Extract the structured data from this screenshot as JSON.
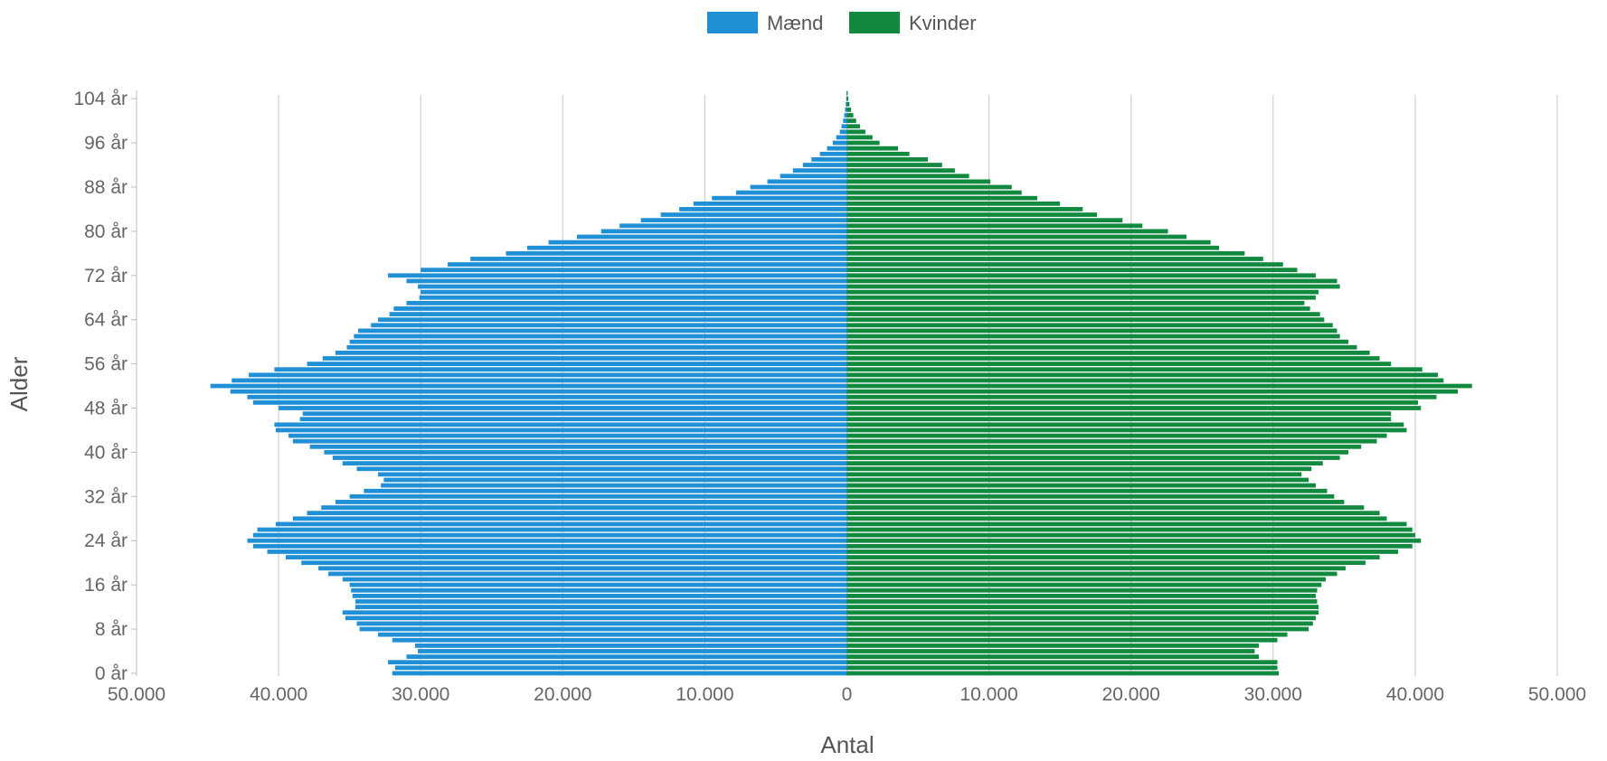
{
  "chart_data": {
    "type": "bar",
    "orientation": "horizontal",
    "layout": "population-pyramid",
    "xlabel": "Antal",
    "ylabel": "Alder",
    "xlim": [
      -50000,
      50000
    ],
    "x_ticks": [
      -50000,
      -40000,
      -30000,
      -20000,
      -10000,
      0,
      10000,
      20000,
      30000,
      40000,
      50000
    ],
    "x_tick_labels": [
      "50.000",
      "40.000",
      "30.000",
      "20.000",
      "10.000",
      "0",
      "10.000",
      "20.000",
      "30.000",
      "40.000",
      "50.000"
    ],
    "y_tick_labels": [
      "0 år",
      "8 år",
      "16 år",
      "24 år",
      "32 år",
      "40 år",
      "48 år",
      "56 år",
      "64 år",
      "72 år",
      "80 år",
      "88 år",
      "96 år",
      "104 år"
    ],
    "y_tick_ages": [
      0,
      8,
      16,
      24,
      32,
      40,
      48,
      56,
      64,
      72,
      80,
      88,
      96,
      104
    ],
    "grid": true,
    "legend_position": "top-center",
    "categories": [
      0,
      1,
      2,
      3,
      4,
      5,
      6,
      7,
      8,
      9,
      10,
      11,
      12,
      13,
      14,
      15,
      16,
      17,
      18,
      19,
      20,
      21,
      22,
      23,
      24,
      25,
      26,
      27,
      28,
      29,
      30,
      31,
      32,
      33,
      34,
      35,
      36,
      37,
      38,
      39,
      40,
      41,
      42,
      43,
      44,
      45,
      46,
      47,
      48,
      49,
      50,
      51,
      52,
      53,
      54,
      55,
      56,
      57,
      58,
      59,
      60,
      61,
      62,
      63,
      64,
      65,
      66,
      67,
      68,
      69,
      70,
      71,
      72,
      73,
      74,
      75,
      76,
      77,
      78,
      79,
      80,
      81,
      82,
      83,
      84,
      85,
      86,
      87,
      88,
      89,
      90,
      91,
      92,
      93,
      94,
      95,
      96,
      97,
      98,
      99,
      100,
      101,
      102,
      103,
      104,
      105
    ],
    "series": [
      {
        "name": "Mænd",
        "color": "#1f8fd6",
        "values": [
          32000,
          31800,
          32300,
          31000,
          30200,
          30400,
          32000,
          33000,
          34300,
          34500,
          35300,
          35500,
          34600,
          34600,
          34800,
          34900,
          35000,
          35500,
          36500,
          37200,
          38400,
          39500,
          40800,
          41800,
          42200,
          41800,
          41500,
          40200,
          39000,
          38000,
          37000,
          36000,
          35000,
          34000,
          32800,
          32600,
          33000,
          34500,
          35500,
          36200,
          36800,
          37800,
          39000,
          39300,
          40200,
          40300,
          38500,
          38300,
          40000,
          41800,
          42200,
          43400,
          44800,
          43300,
          42100,
          40300,
          38000,
          36900,
          36000,
          35200,
          35000,
          34700,
          34400,
          33500,
          33000,
          32200,
          31900,
          31000,
          30100,
          30000,
          30200,
          31000,
          32300,
          30000,
          28100,
          26500,
          24000,
          22500,
          21000,
          19000,
          17300,
          16000,
          14500,
          13100,
          11800,
          10800,
          9500,
          7800,
          6800,
          5600,
          4700,
          3800,
          3100,
          2500,
          1900,
          1400,
          1000,
          750,
          500,
          380,
          270,
          190,
          130,
          80,
          50,
          30
        ]
      },
      {
        "name": "Kvinder",
        "color": "#118a3f",
        "values": [
          30400,
          30300,
          30300,
          29000,
          28700,
          29000,
          30300,
          31000,
          32500,
          32800,
          33000,
          33200,
          33200,
          33100,
          33000,
          33100,
          33400,
          33700,
          34500,
          35100,
          36500,
          37500,
          38800,
          39800,
          40400,
          40000,
          39800,
          39400,
          38000,
          37500,
          36400,
          35000,
          34300,
          33800,
          33000,
          32500,
          32000,
          32700,
          33500,
          34700,
          35300,
          36200,
          37300,
          38000,
          39400,
          39200,
          38300,
          38300,
          40400,
          40200,
          41500,
          43000,
          44000,
          42000,
          41600,
          40500,
          38300,
          37500,
          36800,
          35900,
          35300,
          34700,
          34500,
          34200,
          33600,
          33300,
          32600,
          32200,
          33000,
          33200,
          34700,
          34500,
          33000,
          31700,
          30700,
          29300,
          28000,
          26200,
          25600,
          23900,
          22600,
          20800,
          19400,
          17600,
          16600,
          15000,
          13400,
          12300,
          11600,
          10100,
          8600,
          7600,
          6700,
          5700,
          4400,
          3600,
          2300,
          1800,
          1300,
          920,
          650,
          450,
          290,
          180,
          100,
          60
        ]
      }
    ]
  }
}
